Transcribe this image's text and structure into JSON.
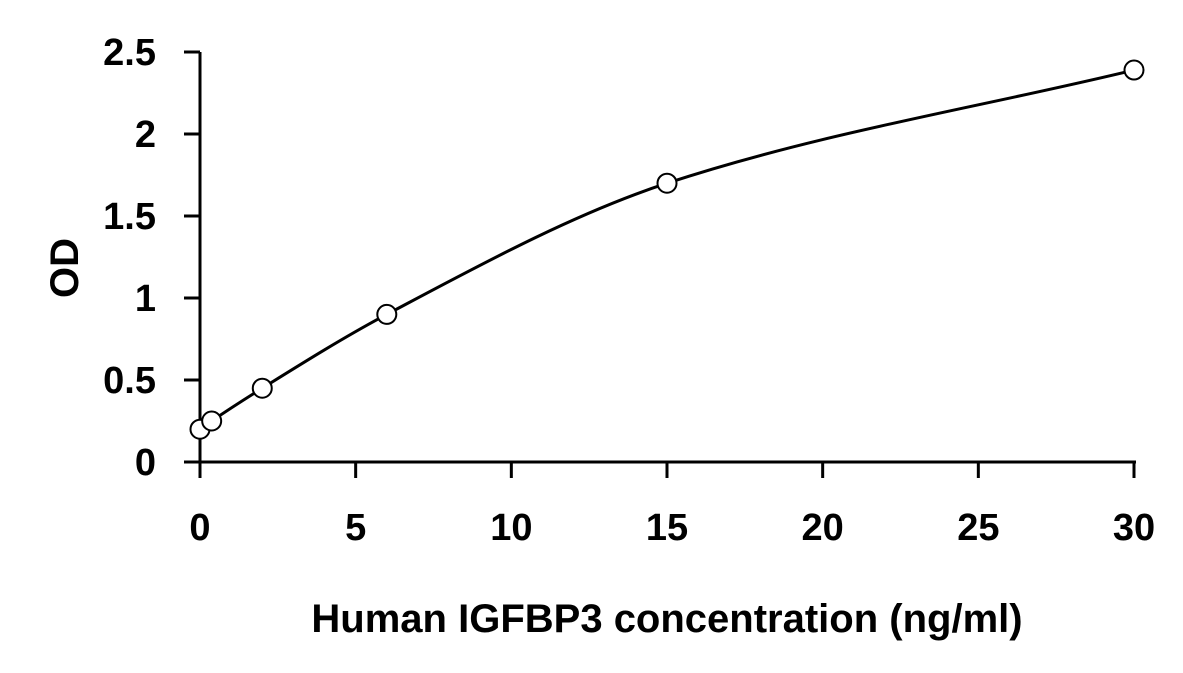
{
  "chart_data": {
    "type": "scatter",
    "title": "",
    "xlabel": "Human IGFBP3 concentration (ng/ml)",
    "ylabel": "OD",
    "xlim": [
      0,
      30
    ],
    "ylim": [
      0,
      2.5
    ],
    "xticks": [
      "0",
      "5",
      "10",
      "15",
      "20",
      "25",
      "30"
    ],
    "yticks": [
      "0",
      "0.5",
      "1",
      "1.5",
      "2",
      "2.5"
    ],
    "grid": false,
    "legend": "none",
    "trendline": "smooth curve through points",
    "series": [
      {
        "x": [
          0,
          0.375,
          2,
          6,
          15,
          30
        ],
        "y": [
          0.2,
          0.25,
          0.45,
          0.9,
          1.7,
          2.39
        ]
      }
    ],
    "colors": {
      "line": "#000000",
      "marker_fill": "#ffffff",
      "marker_stroke": "#000000"
    }
  }
}
